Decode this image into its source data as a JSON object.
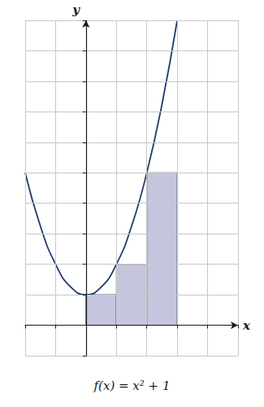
{
  "chart_data": {
    "type": "line",
    "title": "f(x) = x² + 1",
    "xlabel": "x",
    "ylabel": "y",
    "xlim": [
      -2,
      5
    ],
    "xticks": [
      -2,
      -1,
      0,
      1,
      2,
      3,
      4,
      5
    ],
    "ylim": [
      -1,
      10
    ],
    "yticks": [
      -1,
      0,
      1,
      2,
      3,
      4,
      5,
      6,
      7,
      8,
      9,
      10
    ],
    "grid": true,
    "tick_labels": false,
    "series": [
      {
        "type": "bar",
        "color": "#c5c6de",
        "bins": [
          0,
          1,
          2,
          3
        ],
        "values": [
          1,
          2,
          5
        ]
      },
      {
        "type": "line",
        "color": "#1d3c6b",
        "x": [
          -2,
          -1.5,
          -1,
          -0.5,
          0,
          0.5,
          1,
          1.5,
          2,
          2.5,
          3
        ],
        "values": [
          5,
          3.25,
          2,
          1.25,
          1,
          1.25,
          2,
          3.25,
          5,
          7.25,
          10
        ]
      }
    ]
  }
}
